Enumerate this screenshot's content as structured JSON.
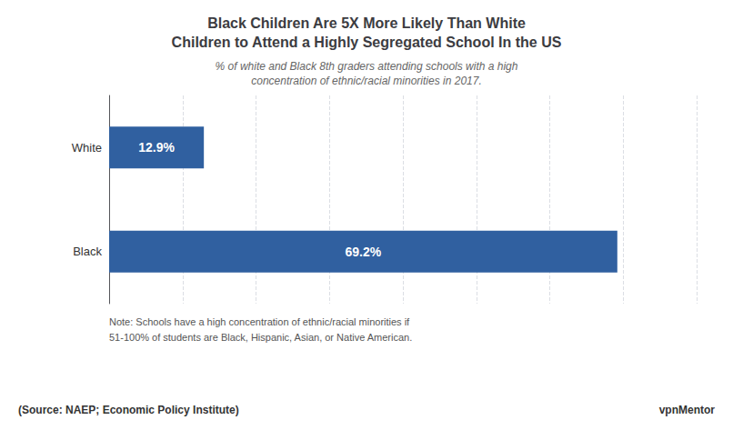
{
  "chart_data": {
    "type": "bar",
    "orientation": "horizontal",
    "title": "Black Children Are 5X More Likely Than White\nChildren to Attend a Highly Segregated School In the US",
    "subtitle": "% of white and Black 8th graders attending schools with a high\nconcentration of ethnic/racial minorities in 2017.",
    "categories": [
      "White",
      "Black"
    ],
    "values": [
      12.9,
      69.2
    ],
    "value_labels": [
      "12.9%",
      "69.2%"
    ],
    "data_labels": true,
    "color": "#3060a0",
    "xlim": [
      0,
      80
    ],
    "xticks": [
      0,
      10,
      20,
      30,
      40,
      50,
      60,
      70,
      80
    ],
    "grid": true,
    "tick_labels": "y",
    "annotations": [
      "Note: Schools have a high concentration of ethnic/racial minorities if",
      "51-100% of students are Black, Hispanic, Asian, or Native American.",
      "(Source: NAEP; Economic Policy Institute)",
      "vpnMentor"
    ]
  }
}
